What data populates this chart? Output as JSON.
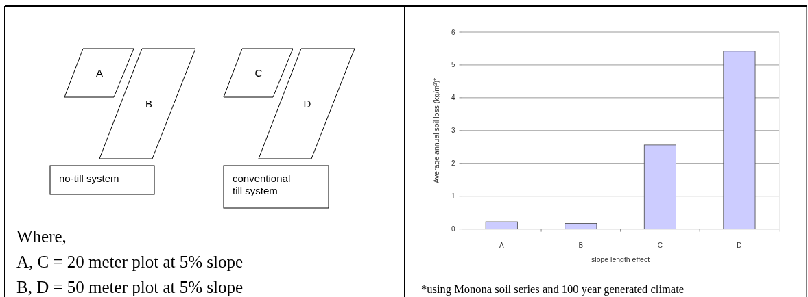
{
  "chart_data": [
    {
      "type": "other",
      "annotations": [
        "A",
        "B",
        "C",
        "D",
        "no-till system",
        "conventional till system",
        "Where,",
        "A, C = 20 meter plot at 5% slope",
        "B, D = 50 meter plot at 5% slope"
      ]
    },
    {
      "type": "bar",
      "categories": [
        "A",
        "B",
        "C",
        "D"
      ],
      "values": [
        0.22,
        0.17,
        2.56,
        5.42
      ],
      "color": "#ccccff",
      "ylim": [
        0,
        6
      ],
      "yticks": [
        0,
        1,
        2,
        3,
        4,
        5,
        6
      ],
      "grid": "y",
      "xlabel": "slope length effect",
      "ylabel": "Average annual soil loss (kg/m²)*",
      "annotations": [
        "*using Monona soil series and 100 year generated climate"
      ]
    }
  ]
}
